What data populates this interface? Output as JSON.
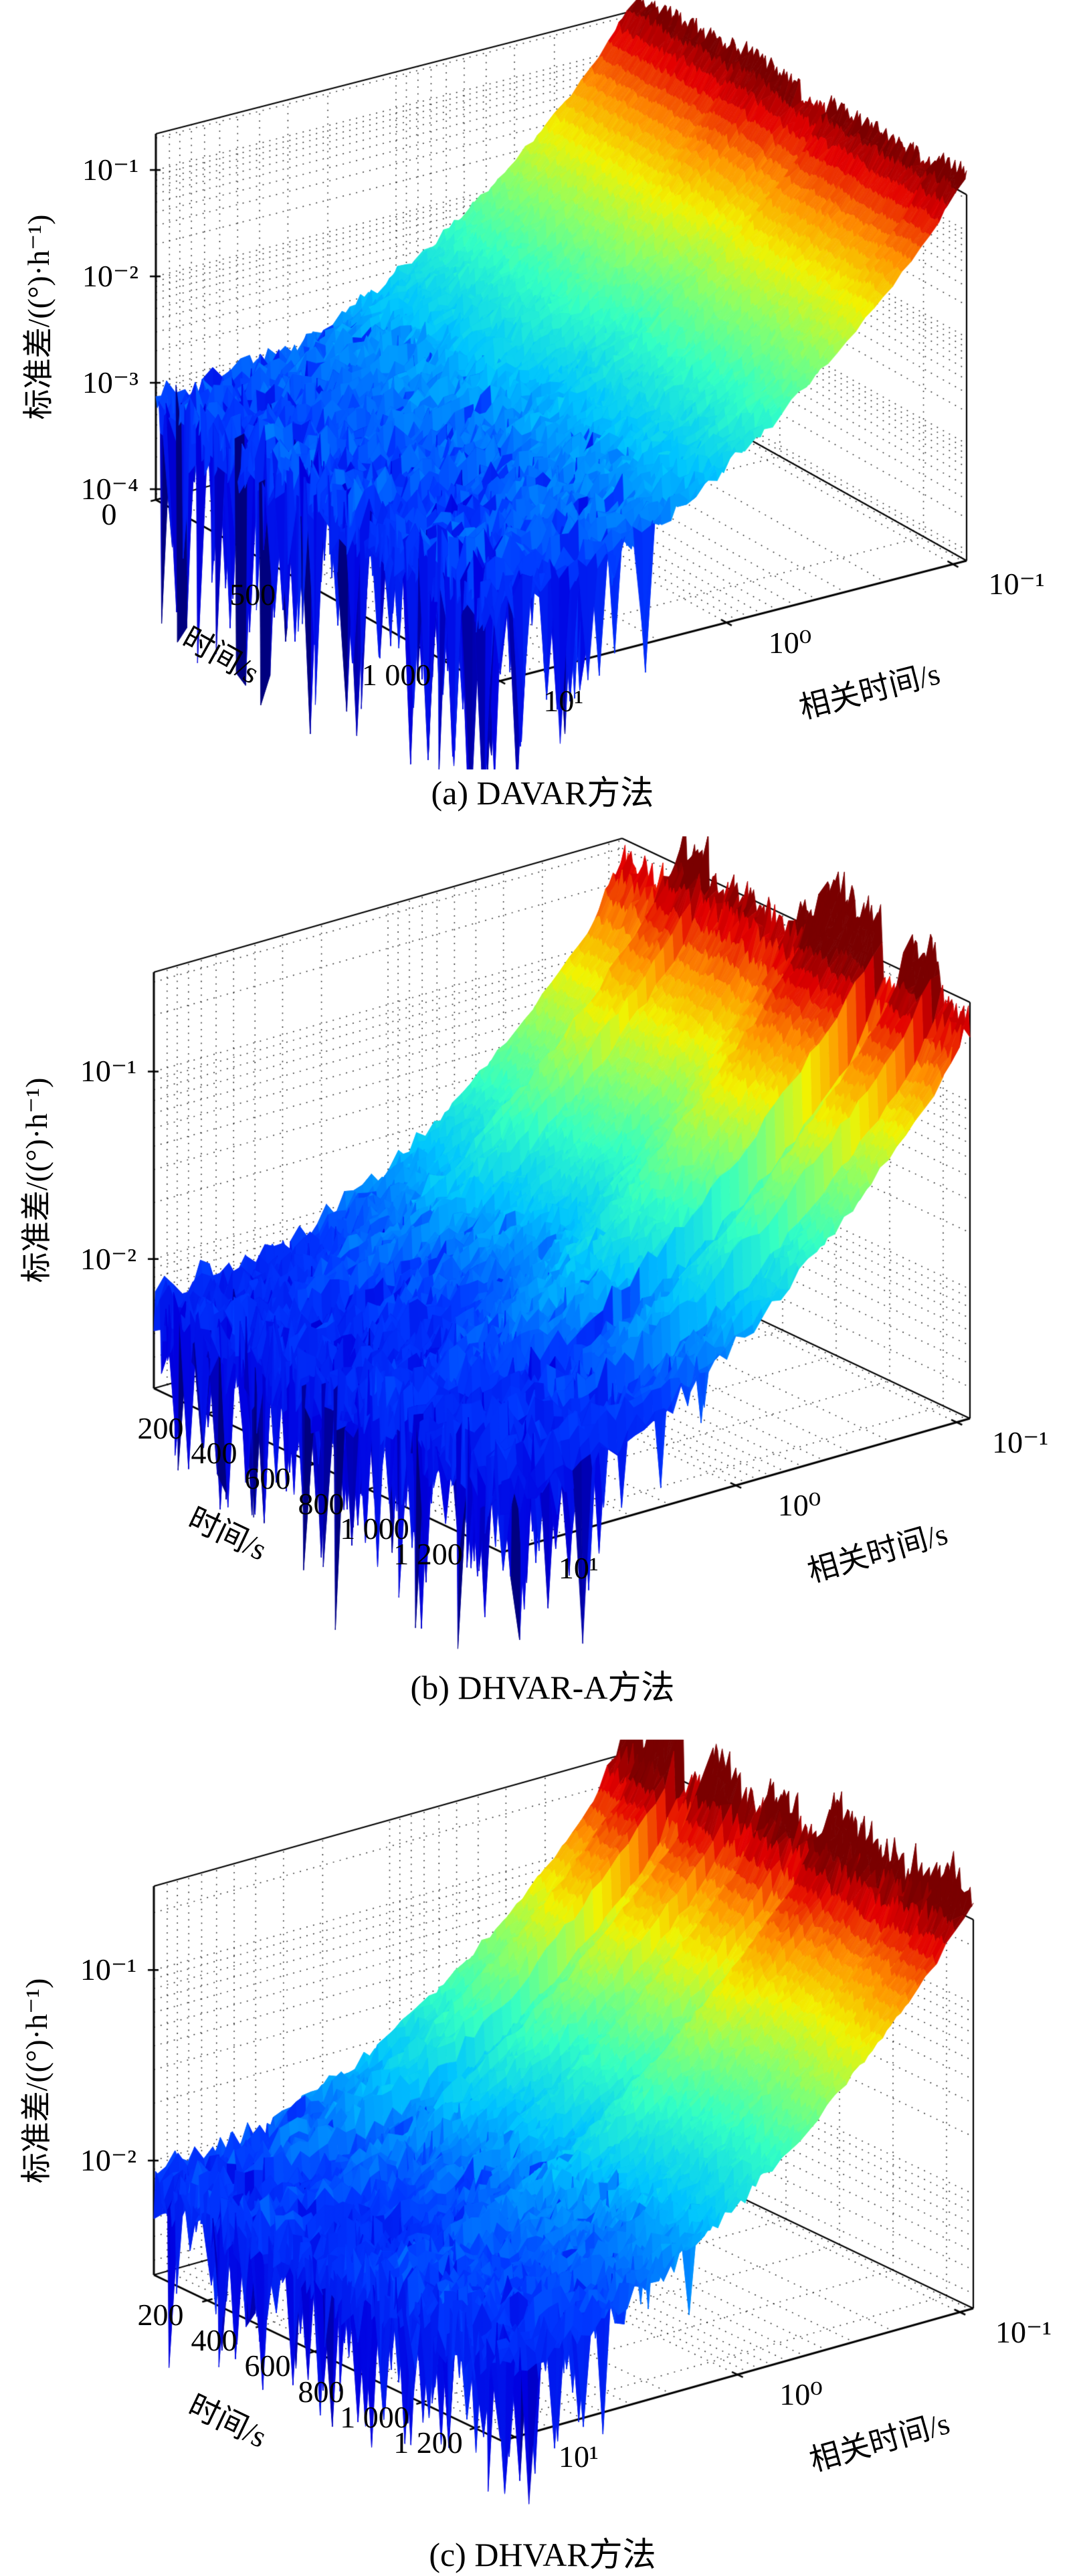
{
  "figure": {
    "background": "#ffffff"
  },
  "colormap": {
    "name": "jet",
    "stops": [
      [
        0.0,
        "#00007f"
      ],
      [
        0.09,
        "#0000e0"
      ],
      [
        0.25,
        "#0038ff"
      ],
      [
        0.4,
        "#00c4ff"
      ],
      [
        0.52,
        "#33ffc4"
      ],
      [
        0.63,
        "#8dff66"
      ],
      [
        0.73,
        "#f2f200"
      ],
      [
        0.83,
        "#ff9000"
      ],
      [
        0.93,
        "#e30000"
      ],
      [
        1.0,
        "#7a0000"
      ]
    ]
  },
  "chart_data": [
    {
      "type": "surface_3d",
      "title": "(a) DAVAR方法",
      "xlabel": "时间/s",
      "ylabel": "相关时间/s",
      "zlabel": "标准差/((°)·h⁻¹)",
      "x_range": [
        0,
        1150
      ],
      "x_ticks": [
        {
          "v": 0,
          "label": "0"
        },
        {
          "v": 500,
          "label": "500"
        },
        {
          "v": 1000,
          "label": "1 000"
        }
      ],
      "y_log_range": [
        1.06,
        -1.06
      ],
      "y_ticks": [
        {
          "log": 1,
          "label": "10¹"
        },
        {
          "log": 0,
          "label": "10⁰"
        },
        {
          "log": -1,
          "label": "10⁻¹"
        }
      ],
      "z_log_range": [
        -4.1,
        -0.66
      ],
      "z_ticks": [
        {
          "log": -1,
          "label": "10⁻¹"
        },
        {
          "log": -2,
          "label": "10⁻²"
        },
        {
          "log": -3,
          "label": "10⁻³"
        },
        {
          "log": -4,
          "label": "10⁻⁴"
        }
      ],
      "surface": {
        "z_log_front": -3.25,
        "z_log_back": -0.62,
        "curve": 2.0,
        "time_bands": 12,
        "band_jitter": 0.1,
        "noise_amp": 0.42,
        "noise_pow": 1.4,
        "spike_zone": 0.42,
        "spike_prob": 0.1,
        "spike_depth": 2.2,
        "ridge_jitter": 0.18,
        "seed": 11
      }
    },
    {
      "type": "surface_3d",
      "title": "(b) DHVAR-A方法",
      "xlabel": "时间/s",
      "ylabel": "相关时间/s",
      "zlabel": "标准差/((°)·h⁻¹)",
      "x_range": [
        0,
        1300
      ],
      "x_ticks": [
        {
          "v": 200,
          "label": "200"
        },
        {
          "v": 400,
          "label": "400"
        },
        {
          "v": 600,
          "label": "600"
        },
        {
          "v": 800,
          "label": "800"
        },
        {
          "v": 1000,
          "label": "1 000"
        },
        {
          "v": 1200,
          "label": "1 200"
        }
      ],
      "y_log_range": [
        1.06,
        -1.06
      ],
      "y_ticks": [
        {
          "log": 1,
          "label": "10¹"
        },
        {
          "log": 0,
          "label": "10⁰"
        },
        {
          "log": -1,
          "label": "10⁻¹"
        }
      ],
      "z_log_range": [
        -2.69,
        -0.47
      ],
      "z_ticks": [
        {
          "log": -1,
          "label": "10⁻¹"
        },
        {
          "log": -2,
          "label": "10⁻²"
        }
      ],
      "surface": {
        "z_log_front": -2.28,
        "z_log_back": -0.52,
        "curve": 1.9,
        "time_bands": 12,
        "band_jitter": 0.22,
        "noise_amp": 0.26,
        "noise_pow": 1.5,
        "spike_zone": 0.5,
        "spike_prob": 0.09,
        "spike_depth": 1.0,
        "ridge_jitter": 0.22,
        "seed": 23
      }
    },
    {
      "type": "surface_3d",
      "title": "(c) DHVAR方法",
      "xlabel": "时间/s",
      "ylabel": "相关时间/s",
      "zlabel": "标准差/((°)·h⁻¹)",
      "x_range": [
        0,
        1300
      ],
      "x_ticks": [
        {
          "v": 200,
          "label": "200"
        },
        {
          "v": 400,
          "label": "400"
        },
        {
          "v": 600,
          "label": "600"
        },
        {
          "v": 800,
          "label": "800"
        },
        {
          "v": 1000,
          "label": "1 000"
        },
        {
          "v": 1200,
          "label": "1 200"
        }
      ],
      "y_log_range": [
        1.06,
        -1.06
      ],
      "y_ticks": [
        {
          "log": 1,
          "label": "10¹"
        },
        {
          "log": 0,
          "label": "10⁰"
        },
        {
          "log": -1,
          "label": "10⁻¹"
        }
      ],
      "z_log_range": [
        -2.6,
        -0.56
      ],
      "z_ticks": [
        {
          "log": -1,
          "label": "10⁻¹"
        },
        {
          "log": -2,
          "label": "10⁻²"
        }
      ],
      "surface": {
        "z_log_front": -2.15,
        "z_log_back": -0.58,
        "curve": 1.9,
        "time_bands": 12,
        "band_jitter": 0.14,
        "noise_amp": 0.2,
        "noise_pow": 1.5,
        "spike_zone": 0.45,
        "spike_prob": 0.07,
        "spike_depth": 0.9,
        "ridge_jitter": 0.25,
        "seed": 37
      }
    }
  ]
}
